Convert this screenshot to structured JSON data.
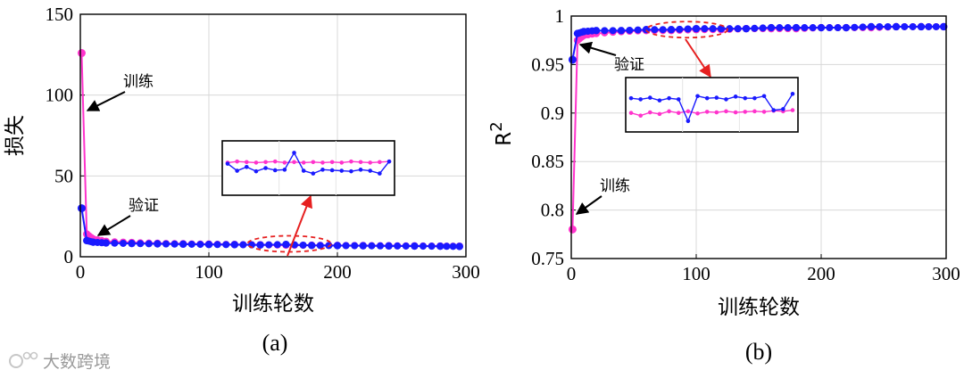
{
  "chart_data": [
    {
      "type": "line",
      "panel_label": "(a)",
      "xlabel": "训练轮数",
      "ylabel": "损失",
      "xlim": [
        0,
        300
      ],
      "ylim": [
        0,
        150
      ],
      "xticks": [
        "0",
        "100",
        "200",
        "300"
      ],
      "yticks": [
        "0",
        "50",
        "100",
        "150"
      ],
      "grid": true,
      "series": [
        {
          "key": "train",
          "color": "#ff33cc",
          "x": [
            1,
            5,
            10,
            20,
            40,
            60,
            80,
            100,
            120,
            140,
            160,
            180,
            200,
            220,
            240,
            260,
            280,
            295
          ],
          "y": [
            126,
            14,
            11,
            9.5,
            8.8,
            8.3,
            8,
            7.8,
            7.6,
            7.4,
            7.2,
            7.1,
            7,
            6.9,
            6.8,
            6.7,
            6.6,
            6.5
          ]
        },
        {
          "key": "val",
          "color": "#1a1aff",
          "x": [
            1,
            5,
            10,
            20,
            40,
            60,
            80,
            100,
            120,
            140,
            160,
            180,
            200,
            220,
            240,
            260,
            280,
            295
          ],
          "y": [
            30,
            10,
            9,
            8.5,
            8.2,
            8,
            7.8,
            7.6,
            7.5,
            7.3,
            7.6,
            7,
            6.9,
            6.8,
            6.7,
            6.6,
            6.5,
            6.4
          ]
        }
      ],
      "annotations": [
        {
          "text": "训练",
          "target": "train",
          "at_x": 5,
          "at_y": 90
        },
        {
          "text": "验证",
          "target": "val",
          "at_x": 13,
          "at_y": 14
        }
      ],
      "zoom_inset": {
        "highlight_x": [
          130,
          195
        ],
        "highlight_y": [
          5,
          11
        ],
        "train_y": [
          0.6,
          0.62,
          0.61,
          0.6,
          0.61,
          0.62,
          0.6,
          0.61,
          0.6,
          0.61,
          0.6,
          0.61,
          0.6,
          0.62,
          0.61,
          0.6,
          0.61,
          0.62
        ],
        "val_y": [
          0.58,
          0.45,
          0.52,
          0.44,
          0.5,
          0.46,
          0.47,
          0.78,
          0.45,
          0.4,
          0.47,
          0.46,
          0.45,
          0.44,
          0.47,
          0.45,
          0.4,
          0.62
        ]
      }
    },
    {
      "type": "line",
      "panel_label": "(b)",
      "xlabel": "训练轮数",
      "ylabel": "R",
      "ylabel_superscript": "2",
      "xlim": [
        0,
        300
      ],
      "ylim": [
        0.75,
        1
      ],
      "xticks": [
        "0",
        "100",
        "200",
        "300"
      ],
      "yticks": [
        "0.75",
        "0.8",
        "0.85",
        "0.9",
        "0.95",
        "1"
      ],
      "grid": true,
      "series": [
        {
          "key": "train",
          "color": "#ff33cc",
          "x": [
            1,
            5,
            10,
            20,
            40,
            60,
            80,
            100,
            120,
            140,
            160,
            180,
            200,
            220,
            240,
            260,
            280,
            298
          ],
          "y": [
            0.78,
            0.975,
            0.98,
            0.982,
            0.984,
            0.985,
            0.985,
            0.986,
            0.986,
            0.987,
            0.987,
            0.987,
            0.988,
            0.988,
            0.988,
            0.989,
            0.989,
            0.989
          ]
        },
        {
          "key": "val",
          "color": "#1a1aff",
          "x": [
            1,
            5,
            10,
            20,
            40,
            60,
            80,
            100,
            120,
            140,
            160,
            180,
            200,
            220,
            240,
            260,
            280,
            298
          ],
          "y": [
            0.955,
            0.982,
            0.984,
            0.985,
            0.985,
            0.986,
            0.986,
            0.987,
            0.987,
            0.987,
            0.988,
            0.988,
            0.988,
            0.988,
            0.989,
            0.989,
            0.989,
            0.989
          ]
        }
      ],
      "annotations": [
        {
          "text": "验证",
          "target": "val",
          "at_x": 10,
          "at_y": 0.98
        },
        {
          "text": "训练",
          "target": "train",
          "at_x": 3,
          "at_y": 0.79
        }
      ],
      "zoom_inset": {
        "highlight_x": [
          60,
          125
        ],
        "highlight_y": [
          0.98,
          0.992
        ],
        "train_y": [
          0.35,
          0.3,
          0.36,
          0.33,
          0.38,
          0.35,
          0.38,
          0.34,
          0.37,
          0.36,
          0.38,
          0.36,
          0.37,
          0.38,
          0.37,
          0.39,
          0.38,
          0.4
        ],
        "val_y": [
          0.62,
          0.6,
          0.63,
          0.58,
          0.62,
          0.6,
          0.2,
          0.66,
          0.62,
          0.63,
          0.6,
          0.65,
          0.62,
          0.62,
          0.66,
          0.4,
          0.42,
          0.7
        ]
      }
    }
  ],
  "watermark": {
    "text": "大数跨境"
  }
}
